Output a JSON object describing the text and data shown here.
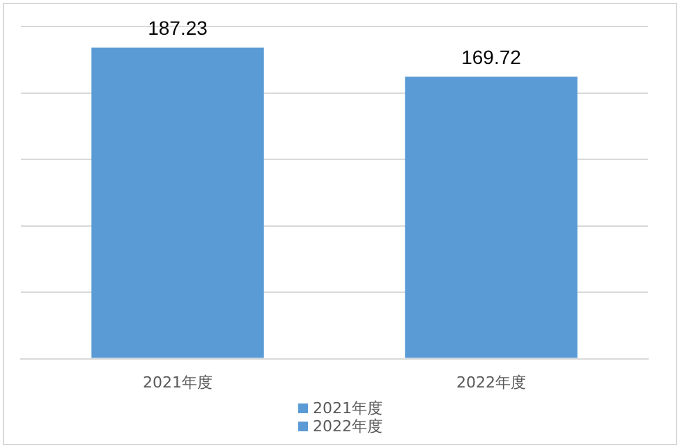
{
  "chart_data": {
    "type": "bar",
    "categories": [
      "2021年度",
      "2022年度"
    ],
    "series": [
      {
        "name": "2021年度",
        "color": "#5b9bd5",
        "values": [
          187.23,
          null
        ]
      },
      {
        "name": "2022年度",
        "color": "#5b9bd5",
        "values": [
          null,
          169.72
        ]
      }
    ],
    "tick_labels": "x",
    "grid": "y",
    "legend": "bottom",
    "data_labels": true
  }
}
